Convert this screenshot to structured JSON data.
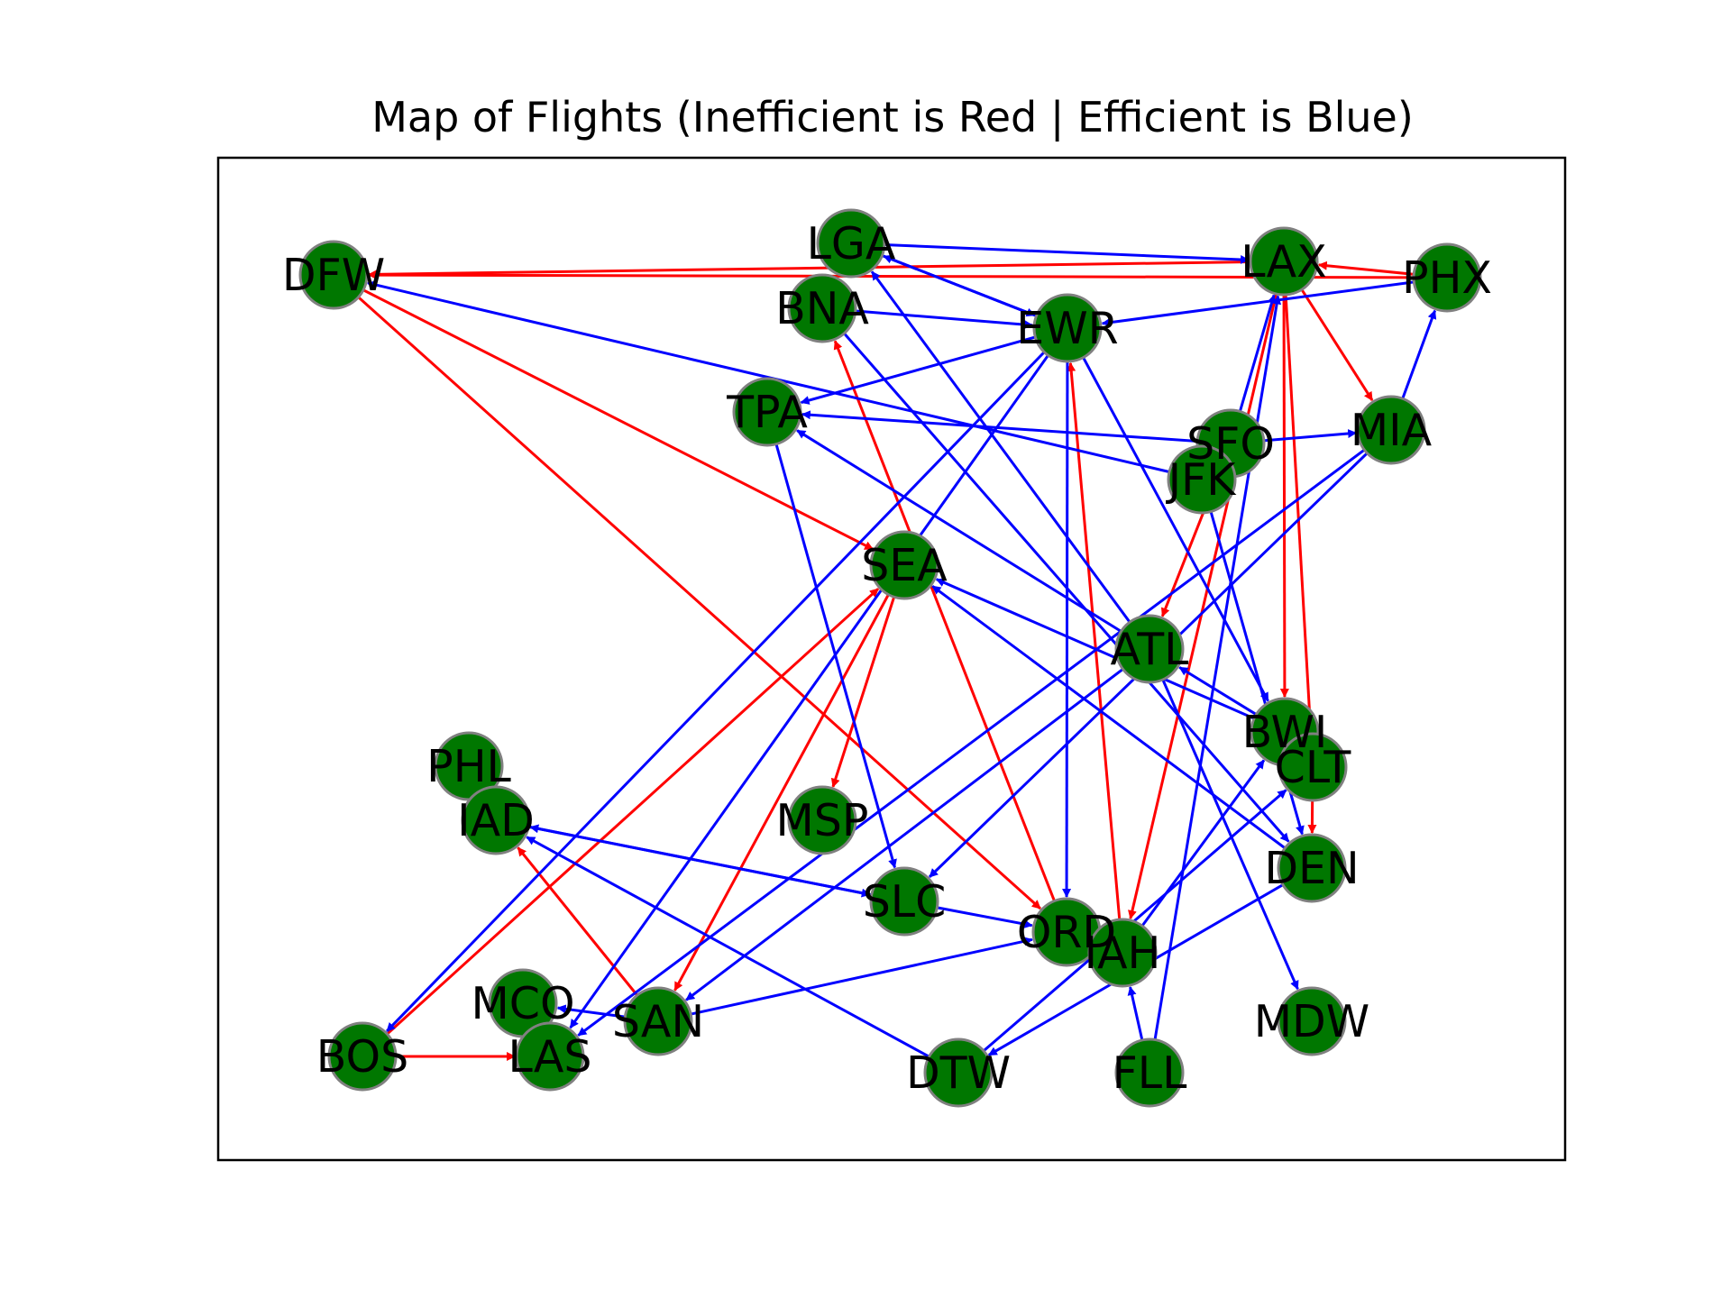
{
  "title": "Map of Flights (Inefficient is Red | Efficient is Blue)",
  "colors": {
    "node_fill": "#007700",
    "node_stroke": "#808080",
    "inefficient": "#ff0000",
    "efficient": "#0000ff",
    "frame": "#000000"
  },
  "nodes": [
    {
      "id": "DFW",
      "label": "DFW"
    },
    {
      "id": "LGA",
      "label": "LGA"
    },
    {
      "id": "BNA",
      "label": "BNA"
    },
    {
      "id": "EWR",
      "label": "EWR"
    },
    {
      "id": "LAX",
      "label": "LAX"
    },
    {
      "id": "PHX",
      "label": "PHX"
    },
    {
      "id": "TPA",
      "label": "TPA"
    },
    {
      "id": "MIA",
      "label": "MIA"
    },
    {
      "id": "SFO",
      "label": "SFO"
    },
    {
      "id": "JFK",
      "label": "JFK"
    },
    {
      "id": "SEA",
      "label": "SEA"
    },
    {
      "id": "ATL",
      "label": "ATL"
    },
    {
      "id": "BWI",
      "label": "BWI"
    },
    {
      "id": "CLT",
      "label": "CLT"
    },
    {
      "id": "PHL",
      "label": "PHL"
    },
    {
      "id": "IAD",
      "label": "IAD"
    },
    {
      "id": "MSP",
      "label": "MSP"
    },
    {
      "id": "DEN",
      "label": "DEN"
    },
    {
      "id": "SLC",
      "label": "SLC"
    },
    {
      "id": "ORD",
      "label": "ORD"
    },
    {
      "id": "IAH",
      "label": "IAH"
    },
    {
      "id": "MCO",
      "label": "MCO"
    },
    {
      "id": "SAN",
      "label": "SAN"
    },
    {
      "id": "MDW",
      "label": "MDW"
    },
    {
      "id": "BOS",
      "label": "BOS"
    },
    {
      "id": "LAS",
      "label": "LAS"
    },
    {
      "id": "DTW",
      "label": "DTW"
    },
    {
      "id": "FLL",
      "label": "FLL"
    }
  ],
  "edges": [
    {
      "from": "LAX",
      "to": "DFW",
      "type": "inefficient"
    },
    {
      "from": "PHX",
      "to": "DFW",
      "type": "inefficient"
    },
    {
      "from": "PHX",
      "to": "LAX",
      "type": "inefficient"
    },
    {
      "from": "LAX",
      "to": "MIA",
      "type": "inefficient"
    },
    {
      "from": "LAX",
      "to": "BWI",
      "type": "inefficient"
    },
    {
      "from": "LAX",
      "to": "CLT",
      "type": "inefficient"
    },
    {
      "from": "LAX",
      "to": "IAH",
      "type": "inefficient"
    },
    {
      "from": "DFW",
      "to": "SEA",
      "type": "inefficient"
    },
    {
      "from": "DFW",
      "to": "ORD",
      "type": "inefficient"
    },
    {
      "from": "ORD",
      "to": "BNA",
      "type": "inefficient"
    },
    {
      "from": "IAH",
      "to": "EWR",
      "type": "inefficient"
    },
    {
      "from": "SEA",
      "to": "MSP",
      "type": "inefficient"
    },
    {
      "from": "SEA",
      "to": "SAN",
      "type": "inefficient"
    },
    {
      "from": "BOS",
      "to": "SEA",
      "type": "inefficient"
    },
    {
      "from": "BOS",
      "to": "LAS",
      "type": "inefficient"
    },
    {
      "from": "SAN",
      "to": "IAD",
      "type": "inefficient"
    },
    {
      "from": "SFO",
      "to": "ATL",
      "type": "inefficient"
    },
    {
      "from": "CLT",
      "to": "DEN",
      "type": "inefficient"
    },
    {
      "from": "LGA",
      "to": "LAX",
      "type": "efficient"
    },
    {
      "from": "LGA",
      "to": "EWR",
      "type": "efficient"
    },
    {
      "from": "EWR",
      "to": "LGA",
      "type": "efficient"
    },
    {
      "from": "BNA",
      "to": "EWR",
      "type": "efficient"
    },
    {
      "from": "EWR",
      "to": "TPA",
      "type": "efficient"
    },
    {
      "from": "EWR",
      "to": "ORD",
      "type": "efficient"
    },
    {
      "from": "EWR",
      "to": "BOS",
      "type": "efficient"
    },
    {
      "from": "EWR",
      "to": "LAS",
      "type": "efficient"
    },
    {
      "from": "EWR",
      "to": "BWI",
      "type": "efficient"
    },
    {
      "from": "PHX",
      "to": "EWR",
      "type": "efficient"
    },
    {
      "from": "MIA",
      "to": "PHX",
      "type": "efficient"
    },
    {
      "from": "SFO",
      "to": "TPA",
      "type": "efficient"
    },
    {
      "from": "SFO",
      "to": "MIA",
      "type": "efficient"
    },
    {
      "from": "SFO",
      "to": "LAX",
      "type": "efficient"
    },
    {
      "from": "JFK",
      "to": "DFW",
      "type": "efficient"
    },
    {
      "from": "JFK",
      "to": "DEN",
      "type": "efficient"
    },
    {
      "from": "TPA",
      "to": "SLC",
      "type": "efficient"
    },
    {
      "from": "MIA",
      "to": "SLC",
      "type": "efficient"
    },
    {
      "from": "MIA",
      "to": "LAS",
      "type": "efficient"
    },
    {
      "from": "ATL",
      "to": "LGA",
      "type": "efficient"
    },
    {
      "from": "ATL",
      "to": "TPA",
      "type": "efficient"
    },
    {
      "from": "ATL",
      "to": "SAN",
      "type": "efficient"
    },
    {
      "from": "ATL",
      "to": "MDW",
      "type": "efficient"
    },
    {
      "from": "BWI",
      "to": "SEA",
      "type": "efficient"
    },
    {
      "from": "BWI",
      "to": "ATL",
      "type": "efficient"
    },
    {
      "from": "BNA",
      "to": "DEN",
      "type": "efficient"
    },
    {
      "from": "DEN",
      "to": "SEA",
      "type": "efficient"
    },
    {
      "from": "IAD",
      "to": "SLC",
      "type": "efficient"
    },
    {
      "from": "SLC",
      "to": "IAD",
      "type": "efficient"
    },
    {
      "from": "SLC",
      "to": "ORD",
      "type": "efficient"
    },
    {
      "from": "SAN",
      "to": "ORD",
      "type": "efficient"
    },
    {
      "from": "SAN",
      "to": "MCO",
      "type": "efficient"
    },
    {
      "from": "DTW",
      "to": "IAD",
      "type": "efficient"
    },
    {
      "from": "IAH",
      "to": "BWI",
      "type": "efficient"
    },
    {
      "from": "DTW",
      "to": "CLT",
      "type": "efficient"
    },
    {
      "from": "DEN",
      "to": "DTW",
      "type": "efficient"
    },
    {
      "from": "FLL",
      "to": "IAH",
      "type": "efficient"
    },
    {
      "from": "FLL",
      "to": "LAX",
      "type": "efficient"
    }
  ]
}
